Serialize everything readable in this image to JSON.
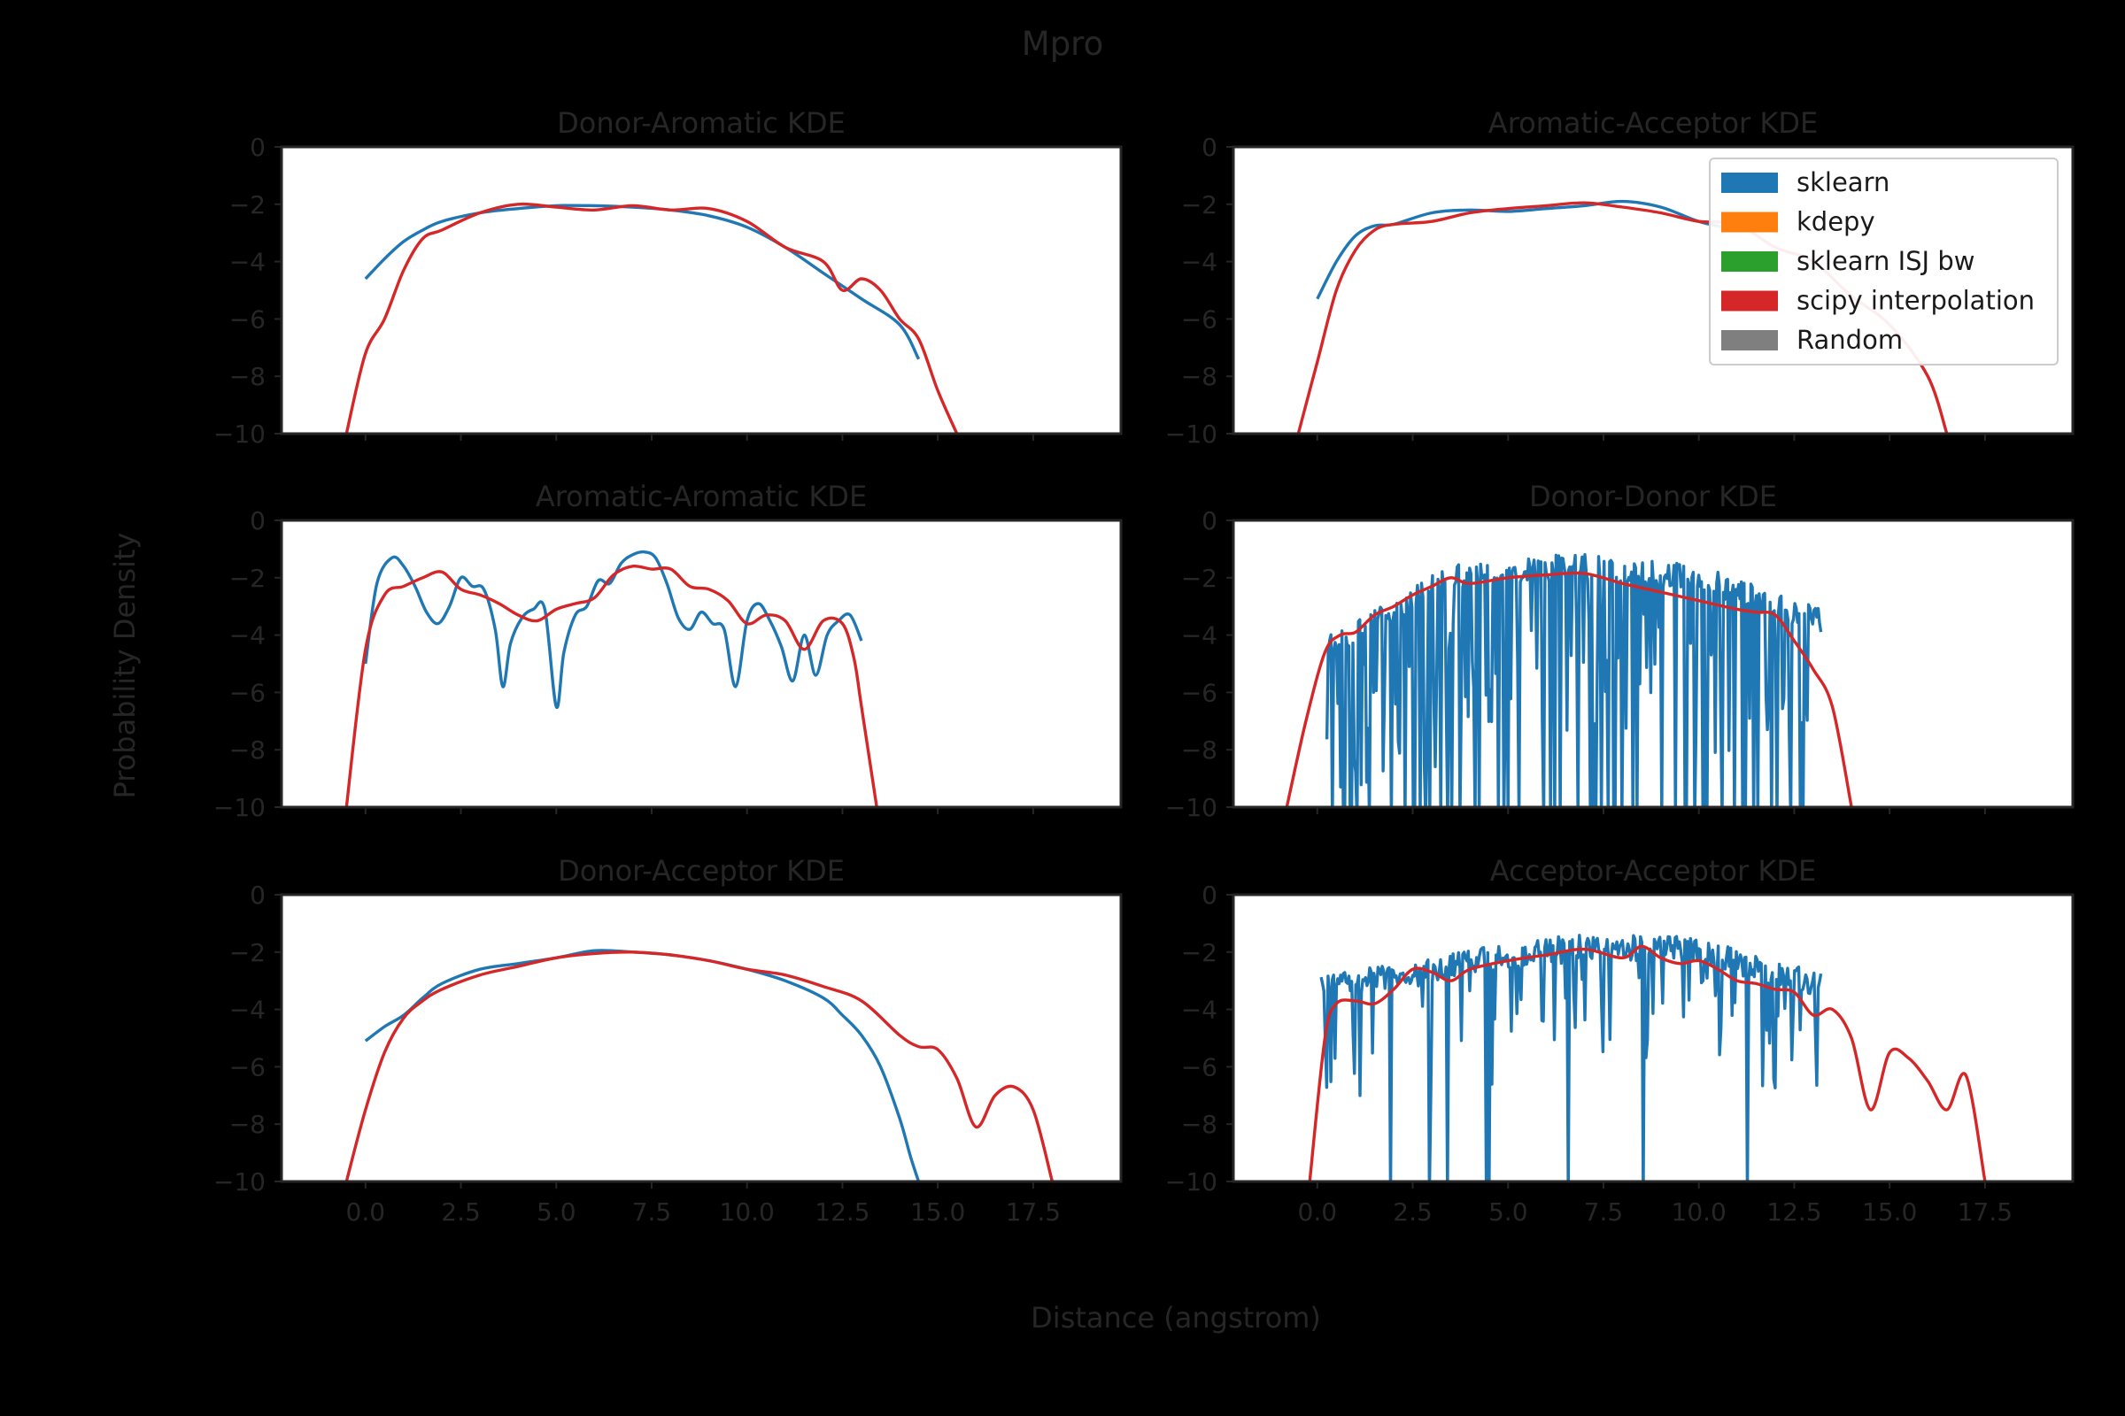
{
  "figure": {
    "suptitle": "Mpro",
    "xlabel": "Distance (angstrom)",
    "ylabel": "Probability Density"
  },
  "legend": {
    "placement": "top-right",
    "entries": [
      {
        "label": "sklearn",
        "color": "#1f77b4"
      },
      {
        "label": "kdepy",
        "color": "#ff7f0e"
      },
      {
        "label": "sklearn ISJ bw",
        "color": "#2ca02c"
      },
      {
        "label": "scipy interpolation",
        "color": "#d62728"
      },
      {
        "label": "Random",
        "color": "#7f7f7f"
      }
    ]
  },
  "chart_data": [
    {
      "type": "line",
      "title": "Donor-Aromatic KDE",
      "xlim": [
        -2.2,
        19.8
      ],
      "ylim": [
        -10,
        0
      ],
      "xticks": [
        "0.0",
        "2.5",
        "5.0",
        "7.5",
        "10.0",
        "12.5",
        "15.0",
        "17.5"
      ],
      "yticks": [
        "0",
        "−2",
        "−4",
        "−6",
        "−8",
        "−10"
      ],
      "series": [
        {
          "name": "sklearn",
          "color": "#1f77b4",
          "style": "smooth",
          "x": [
            0.0,
            0.5,
            1.0,
            1.5,
            2.0,
            3.0,
            4.0,
            5.0,
            6.0,
            7.0,
            8.0,
            9.0,
            10.0,
            11.0,
            12.0,
            13.0,
            14.0,
            14.5
          ],
          "y": [
            -4.6,
            -3.9,
            -3.3,
            -2.9,
            -2.6,
            -2.3,
            -2.15,
            -2.05,
            -2.05,
            -2.1,
            -2.2,
            -2.4,
            -2.8,
            -3.5,
            -4.4,
            -5.3,
            -6.2,
            -7.4
          ]
        },
        {
          "name": "scipy interpolation",
          "color": "#d62728",
          "style": "smooth",
          "x": [
            -0.5,
            0.0,
            0.5,
            1.0,
            1.5,
            2.0,
            3.0,
            4.0,
            5.0,
            6.0,
            7.0,
            8.0,
            9.0,
            10.0,
            11.0,
            12.0,
            12.5,
            13.0,
            13.5,
            14.0,
            14.5,
            15.0,
            15.5
          ],
          "y": [
            -10,
            -7.2,
            -6.0,
            -4.3,
            -3.2,
            -2.9,
            -2.3,
            -2.0,
            -2.1,
            -2.2,
            -2.05,
            -2.2,
            -2.15,
            -2.6,
            -3.5,
            -4.0,
            -5.0,
            -4.6,
            -5.0,
            -6.0,
            -6.7,
            -8.5,
            -10
          ]
        }
      ]
    },
    {
      "type": "line",
      "title": "Aromatic-Acceptor KDE",
      "xlim": [
        -2.2,
        19.8
      ],
      "ylim": [
        -10,
        0
      ],
      "xticks": [
        "0.0",
        "2.5",
        "5.0",
        "7.5",
        "10.0",
        "12.5",
        "15.0",
        "17.5"
      ],
      "yticks": [
        "0",
        "−2",
        "−4",
        "−6",
        "−8",
        "−10"
      ],
      "series": [
        {
          "name": "sklearn",
          "color": "#1f77b4",
          "style": "smooth",
          "x": [
            0.0,
            0.5,
            1.0,
            1.5,
            2.0,
            3.0,
            4.0,
            5.0,
            6.0,
            7.0,
            8.0,
            9.0,
            10.0,
            11.0
          ],
          "y": [
            -5.3,
            -4.0,
            -3.1,
            -2.75,
            -2.7,
            -2.3,
            -2.2,
            -2.25,
            -2.15,
            -2.05,
            -1.9,
            -2.1,
            -2.6,
            -2.9
          ]
        },
        {
          "name": "scipy interpolation",
          "color": "#d62728",
          "style": "smooth",
          "x": [
            -0.5,
            0.0,
            0.5,
            1.0,
            1.5,
            2.0,
            3.0,
            4.0,
            5.0,
            6.0,
            7.0,
            8.0,
            9.0,
            10.0,
            11.0,
            12.0,
            13.0,
            14.0,
            15.0,
            16.0,
            16.5
          ],
          "y": [
            -10,
            -7.5,
            -5.0,
            -3.6,
            -2.9,
            -2.7,
            -2.6,
            -2.3,
            -2.15,
            -2.05,
            -1.95,
            -2.1,
            -2.3,
            -2.6,
            -2.7,
            -3.5,
            -4.0,
            -5.2,
            -6.2,
            -8.0,
            -10
          ]
        }
      ]
    },
    {
      "type": "line",
      "title": "Aromatic-Aromatic KDE",
      "xlim": [
        -2.2,
        19.8
      ],
      "ylim": [
        -10,
        0
      ],
      "xticks": [
        "0.0",
        "2.5",
        "5.0",
        "7.5",
        "10.0",
        "12.5",
        "15.0",
        "17.5"
      ],
      "yticks": [
        "0",
        "−2",
        "−4",
        "−6",
        "−8",
        "−10"
      ],
      "series": [
        {
          "name": "sklearn",
          "color": "#1f77b4",
          "style": "smooth",
          "x": [
            0.0,
            0.3,
            0.7,
            1.0,
            1.3,
            1.6,
            1.9,
            2.2,
            2.5,
            2.8,
            3.1,
            3.4,
            3.6,
            3.8,
            4.1,
            4.4,
            4.7,
            5.0,
            5.2,
            5.5,
            5.8,
            6.1,
            6.4,
            6.7,
            7.0,
            7.3,
            7.6,
            7.9,
            8.2,
            8.5,
            8.8,
            9.1,
            9.4,
            9.7,
            10.0,
            10.3,
            10.6,
            10.9,
            11.2,
            11.5,
            11.8,
            12.1,
            12.4,
            12.7,
            13.0
          ],
          "y": [
            -5.0,
            -2.2,
            -1.3,
            -1.6,
            -2.3,
            -3.2,
            -3.6,
            -3.0,
            -2.0,
            -2.3,
            -2.4,
            -3.8,
            -5.8,
            -4.3,
            -3.4,
            -3.1,
            -3.1,
            -6.5,
            -4.6,
            -3.3,
            -3.0,
            -2.1,
            -2.2,
            -1.5,
            -1.2,
            -1.1,
            -1.3,
            -2.2,
            -3.4,
            -3.8,
            -3.2,
            -3.6,
            -3.8,
            -5.8,
            -3.5,
            -2.9,
            -3.5,
            -4.4,
            -5.6,
            -4.0,
            -5.4,
            -4.0,
            -3.5,
            -3.3,
            -4.2
          ]
        },
        {
          "name": "scipy interpolation",
          "color": "#d62728",
          "style": "smooth",
          "x": [
            -0.5,
            0.0,
            0.5,
            1.0,
            1.5,
            2.0,
            2.5,
            3.0,
            3.5,
            4.0,
            4.5,
            5.0,
            5.5,
            6.0,
            6.5,
            7.0,
            7.5,
            8.0,
            8.5,
            9.0,
            9.5,
            10.0,
            10.5,
            11.0,
            11.5,
            12.0,
            12.5,
            12.8,
            13.0,
            13.4
          ],
          "y": [
            -10,
            -4.5,
            -2.6,
            -2.3,
            -2.0,
            -1.8,
            -2.4,
            -2.6,
            -2.9,
            -3.3,
            -3.5,
            -3.1,
            -2.9,
            -2.7,
            -1.9,
            -1.6,
            -1.7,
            -1.7,
            -2.3,
            -2.4,
            -2.8,
            -3.6,
            -3.3,
            -3.5,
            -4.5,
            -3.5,
            -3.6,
            -4.8,
            -6.5,
            -10
          ]
        }
      ]
    },
    {
      "type": "line",
      "title": "Donor-Donor KDE",
      "xlim": [
        -2.2,
        19.8
      ],
      "ylim": [
        -10,
        0
      ],
      "xticks": [
        "0.0",
        "2.5",
        "5.0",
        "7.5",
        "10.0",
        "12.5",
        "15.0",
        "17.5"
      ],
      "yticks": [
        "0",
        "−2",
        "−4",
        "−6",
        "−8",
        "−10"
      ],
      "series": [
        {
          "name": "sklearn",
          "color": "#1f77b4",
          "style": "noisy",
          "x_range": [
            0.25,
            13.2
          ],
          "base": [
            -4.5,
            -2.0,
            -1.6,
            -2.0,
            -3.5
          ],
          "spike_depth": "to -10"
        },
        {
          "name": "scipy interpolation",
          "color": "#d62728",
          "style": "smooth",
          "x": [
            -0.8,
            -0.3,
            0.2,
            0.6,
            1.0,
            1.5,
            2.0,
            2.5,
            3.0,
            3.5,
            4.0,
            5.0,
            6.0,
            7.0,
            8.0,
            9.0,
            10.0,
            11.0,
            11.5,
            12.0,
            12.5,
            13.0,
            13.5,
            14.0
          ],
          "y": [
            -10,
            -7.0,
            -4.6,
            -4.0,
            -3.9,
            -3.3,
            -3.0,
            -2.6,
            -2.3,
            -2.0,
            -2.2,
            -2.0,
            -1.9,
            -1.85,
            -2.2,
            -2.5,
            -2.8,
            -3.1,
            -3.2,
            -3.3,
            -4.2,
            -5.2,
            -6.5,
            -10
          ]
        }
      ]
    },
    {
      "type": "line",
      "title": "Donor-Acceptor KDE",
      "xlim": [
        -2.2,
        19.8
      ],
      "ylim": [
        -10,
        0
      ],
      "xticks": [
        "0.0",
        "2.5",
        "5.0",
        "7.5",
        "10.0",
        "12.5",
        "15.0",
        "17.5"
      ],
      "yticks": [
        "0",
        "−2",
        "−4",
        "−6",
        "−8",
        "−10"
      ],
      "series": [
        {
          "name": "sklearn",
          "color": "#1f77b4",
          "style": "smooth",
          "x": [
            0.0,
            0.5,
            1.0,
            1.5,
            2.0,
            3.0,
            4.0,
            5.0,
            6.0,
            7.0,
            8.0,
            9.0,
            10.0,
            11.0,
            12.0,
            12.5,
            13.0,
            13.5,
            14.0,
            14.3,
            14.6
          ],
          "y": [
            -5.1,
            -4.6,
            -4.2,
            -3.6,
            -3.1,
            -2.6,
            -2.4,
            -2.2,
            -1.95,
            -2.0,
            -2.1,
            -2.3,
            -2.6,
            -3.0,
            -3.6,
            -4.2,
            -4.9,
            -6.0,
            -7.8,
            -9.2,
            -10.4
          ]
        },
        {
          "name": "scipy interpolation",
          "color": "#d62728",
          "style": "smooth",
          "x": [
            -0.5,
            0.0,
            0.5,
            1.0,
            1.5,
            2.0,
            3.0,
            4.0,
            5.0,
            6.0,
            7.0,
            8.0,
            9.0,
            10.0,
            11.0,
            12.0,
            13.0,
            14.0,
            14.5,
            15.0,
            15.5,
            16.0,
            16.5,
            17.0,
            17.5,
            18.0
          ],
          "y": [
            -10,
            -7.5,
            -5.5,
            -4.3,
            -3.7,
            -3.3,
            -2.8,
            -2.5,
            -2.2,
            -2.05,
            -2.0,
            -2.1,
            -2.3,
            -2.6,
            -2.8,
            -3.2,
            -3.7,
            -4.9,
            -5.3,
            -5.4,
            -6.4,
            -8.1,
            -7.0,
            -6.7,
            -7.5,
            -10
          ]
        }
      ]
    },
    {
      "type": "line",
      "title": "Acceptor-Acceptor KDE",
      "xlim": [
        -2.2,
        19.8
      ],
      "ylim": [
        -10,
        0
      ],
      "xticks": [
        "0.0",
        "2.5",
        "5.0",
        "7.5",
        "10.0",
        "12.5",
        "15.0",
        "17.5"
      ],
      "yticks": [
        "0",
        "−2",
        "−4",
        "−6",
        "−8",
        "−10"
      ],
      "series": [
        {
          "name": "sklearn",
          "color": "#1f77b4",
          "style": "noisy",
          "x_range": [
            0.1,
            13.2
          ],
          "base": [
            -3.3,
            -2.5,
            -1.8,
            -1.9,
            -3.2
          ],
          "spike_depth": "moderate"
        },
        {
          "name": "scipy interpolation",
          "color": "#d62728",
          "style": "smooth",
          "x": [
            -0.2,
            0.2,
            0.5,
            1.0,
            1.5,
            2.0,
            2.5,
            3.0,
            3.5,
            4.0,
            5.0,
            6.0,
            7.0,
            8.0,
            8.5,
            9.0,
            9.5,
            10.0,
            10.5,
            11.0,
            11.5,
            12.0,
            12.5,
            13.0,
            13.5,
            14.0,
            14.5,
            15.0,
            15.5,
            16.0,
            16.5,
            17.0,
            17.5
          ],
          "y": [
            -10,
            -5.0,
            -3.8,
            -3.7,
            -3.8,
            -3.3,
            -2.6,
            -2.7,
            -3.0,
            -2.6,
            -2.3,
            -2.1,
            -1.9,
            -2.2,
            -1.8,
            -2.2,
            -2.4,
            -2.3,
            -2.6,
            -3.0,
            -3.1,
            -3.3,
            -3.4,
            -4.2,
            -4.0,
            -5.0,
            -7.5,
            -5.5,
            -5.7,
            -6.5,
            -7.5,
            -6.3,
            -10
          ]
        }
      ]
    }
  ]
}
